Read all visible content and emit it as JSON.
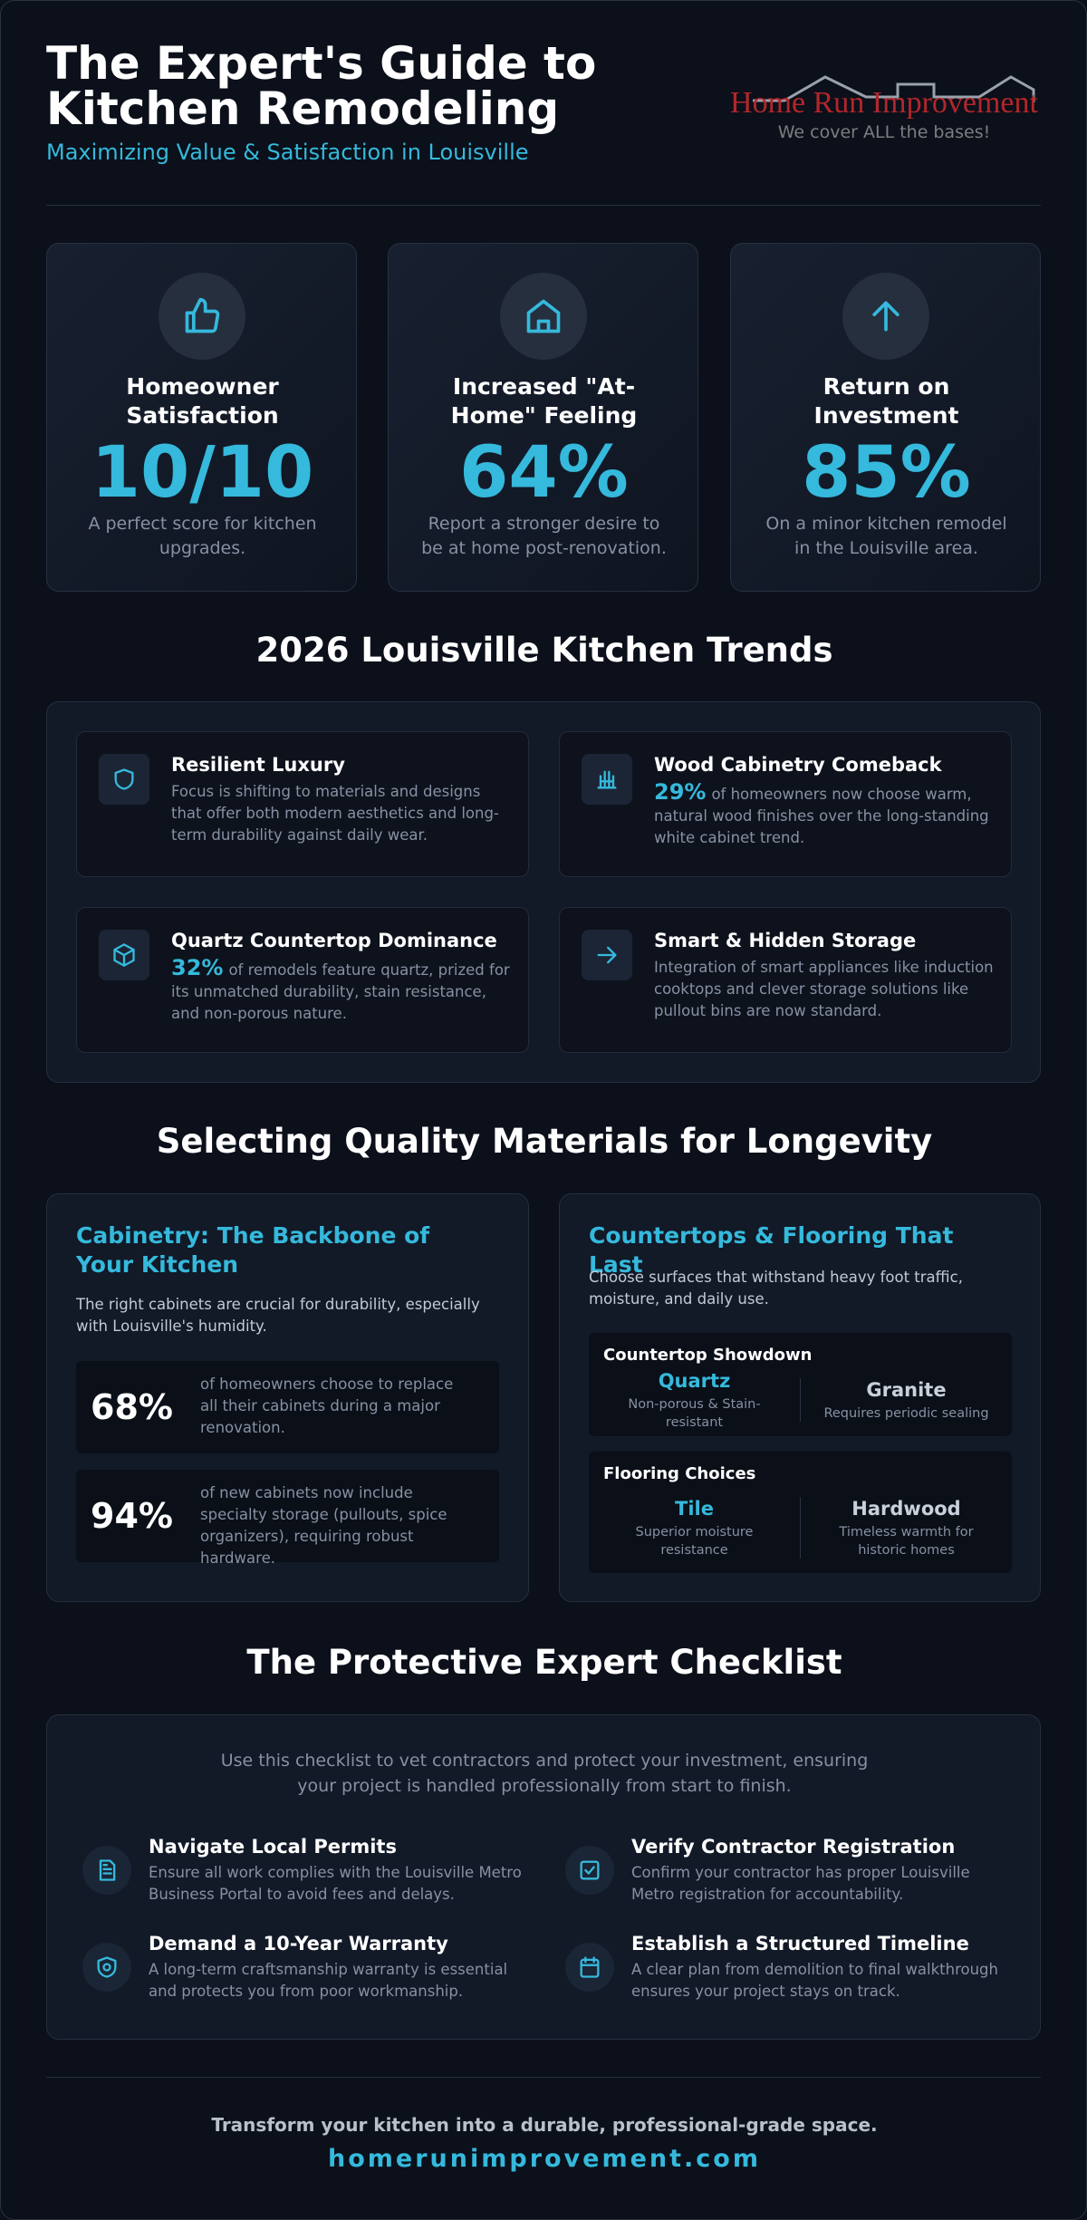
{
  "header": {
    "title": "The Expert's Guide to Kitchen Remodeling",
    "subtitle": "Maximizing Value & Satisfaction in Louisville",
    "logo": {
      "name": "Home Run Improvement",
      "tagline": "We cover ALL the bases!"
    }
  },
  "stats": [
    {
      "title": "Homeowner Satisfaction",
      "value": "10/10",
      "description": "A perfect score for kitchen upgrades."
    },
    {
      "title": "Increased \"At-Home\" Feeling",
      "value": "64%",
      "description": "Report a stronger desire to be at home post-renovation."
    },
    {
      "title": "Return on Investment",
      "value": "85%",
      "description": "On a minor kitchen remodel in the Louisville area."
    }
  ],
  "trends": {
    "title": "2026 Louisville Kitchen Trends",
    "items": [
      {
        "title": "Resilient Luxury",
        "description": "Focus is shifting to materials and designs that offer both modern aesthetics and long-term durability against daily wear."
      },
      {
        "title": "Wood Cabinetry Comeback",
        "stat": "29%",
        "description": "of homeowners now choose warm, natural wood finishes over the long-standing white cabinet trend."
      },
      {
        "title": "Quartz Countertop Dominance",
        "stat": "32%",
        "description": "of remodels feature quartz, prized for its unmatched durability, stain resistance, and non-porous nature."
      },
      {
        "title": "Smart & Hidden Storage",
        "description": "Integration of smart appliances like induction cooktops and clever storage solutions like pullout bins are now standard."
      }
    ]
  },
  "materials": {
    "title": "Selecting Quality Materials for Longevity",
    "cabinetry": {
      "title": "Cabinetry: The Backbone of Your Kitchen",
      "description": "The right cabinets are crucial for durability, especially with Louisville's humidity.",
      "stats": [
        {
          "value": "68%",
          "text": "of homeowners choose to replace all their cabinets during a major renovation."
        },
        {
          "value": "94%",
          "text": "of new cabinets now include specialty storage (pullouts, spice organizers), requiring robust hardware."
        }
      ]
    },
    "surfaces": {
      "title": "Countertops & Flooring That Last",
      "description": "Choose surfaces that withstand heavy foot traffic, moisture, and daily use.",
      "countertops": {
        "title": "Countertop Showdown",
        "options": [
          {
            "name": "Quartz",
            "note": "Non-porous & Stain-resistant"
          },
          {
            "name": "Granite",
            "note": "Requires periodic sealing"
          }
        ]
      },
      "flooring": {
        "title": "Flooring Choices",
        "options": [
          {
            "name": "Tile",
            "note": "Superior moisture resistance"
          },
          {
            "name": "Hardwood",
            "note": "Timeless warmth for historic homes"
          }
        ]
      }
    }
  },
  "checklist": {
    "title": "The Protective Expert Checklist",
    "intro": "Use this checklist to vet contractors and protect your investment, ensuring your project is handled professionally from start to finish.",
    "items": [
      {
        "title": "Navigate Local Permits",
        "description": "Ensure all work complies with the Louisville Metro Business Portal to avoid fees and delays."
      },
      {
        "title": "Verify Contractor Registration",
        "description": "Confirm your contractor has proper Louisville Metro registration for accountability."
      },
      {
        "title": "Demand a 10-Year Warranty",
        "description": "A long-term craftsmanship warranty is essential and protects you from poor workmanship."
      },
      {
        "title": "Establish a Structured Timeline",
        "description": "A clear plan from demolition to final walkthrough ensures your project stays on track."
      }
    ]
  },
  "footer": {
    "tagline": "Transform your kitchen into a durable, professional-grade space.",
    "url": "homerunimprovement.com"
  }
}
